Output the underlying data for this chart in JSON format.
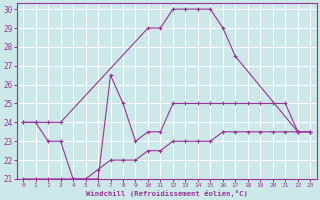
{
  "xlabel": "Windchill (Refroidissement éolien,°C)",
  "bg_color": "#cce8e8",
  "grid_color": "#ffffff",
  "line_color": "#993399",
  "xlim": [
    -0.5,
    23.5
  ],
  "ylim": [
    21,
    30.3
  ],
  "xticks": [
    0,
    1,
    2,
    3,
    4,
    5,
    6,
    7,
    8,
    9,
    10,
    11,
    12,
    13,
    14,
    15,
    16,
    17,
    18,
    19,
    20,
    21,
    22,
    23
  ],
  "yticks": [
    21,
    22,
    23,
    24,
    25,
    26,
    27,
    28,
    29,
    30
  ],
  "series": [
    {
      "x": [
        0,
        1,
        2,
        3,
        10,
        11,
        12,
        13,
        14,
        15,
        16,
        17,
        22,
        23
      ],
      "y": [
        24,
        24,
        24,
        24,
        29,
        29,
        30,
        30,
        30,
        30,
        29,
        27.5,
        23.5,
        23.5
      ]
    },
    {
      "x": [
        0,
        1,
        2,
        3,
        4,
        5,
        6,
        7,
        8,
        9,
        10,
        11,
        12,
        13,
        14,
        15,
        16,
        17,
        18,
        19,
        20,
        21,
        22,
        23
      ],
      "y": [
        24,
        24,
        23,
        23,
        21,
        21,
        21,
        26.5,
        25,
        23,
        23.5,
        23.5,
        25,
        25,
        25,
        25,
        25,
        25,
        25,
        25,
        25,
        25,
        23.5,
        23.5
      ]
    },
    {
      "x": [
        0,
        1,
        2,
        3,
        4,
        5,
        6,
        7,
        8,
        9,
        10,
        11,
        12,
        13,
        14,
        15,
        16,
        17,
        18,
        19,
        20,
        21,
        22,
        23
      ],
      "y": [
        21,
        21,
        21,
        21,
        21,
        21,
        21.5,
        22,
        22,
        22,
        22.5,
        22.5,
        23,
        23,
        23,
        23,
        23.5,
        23.5,
        23.5,
        23.5,
        23.5,
        23.5,
        23.5,
        23.5
      ]
    }
  ]
}
